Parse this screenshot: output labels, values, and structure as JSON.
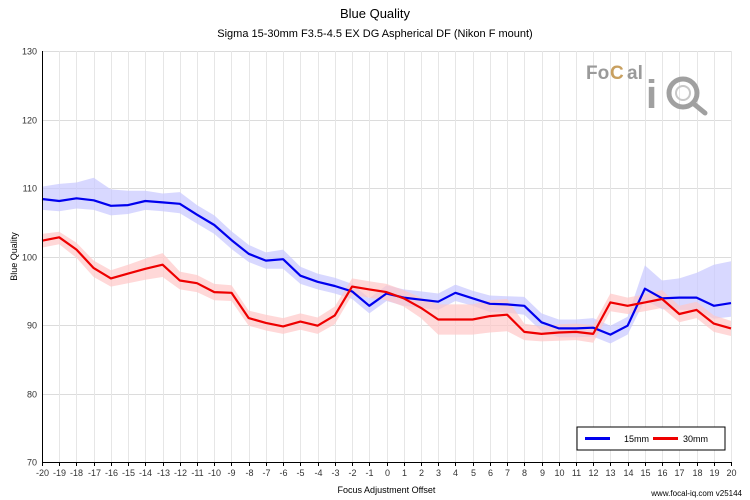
{
  "chart_data": {
    "type": "line",
    "title": "Blue Quality",
    "subtitle": "Sigma 15-30mm F3.5-4.5 EX DG Aspherical DF (Nikon F mount)",
    "xlabel": "Focus Adjustment Offset",
    "ylabel": "Blue Quality",
    "xlim": [
      -20,
      20
    ],
    "ylim": [
      70,
      130
    ],
    "x_ticks": [
      -20,
      -19,
      -18,
      -17,
      -16,
      -15,
      -14,
      -13,
      -12,
      -11,
      -10,
      -9,
      -8,
      -7,
      -6,
      -5,
      -4,
      -3,
      -2,
      -1,
      0,
      1,
      2,
      3,
      4,
      5,
      6,
      7,
      8,
      9,
      10,
      11,
      12,
      13,
      14,
      15,
      16,
      17,
      18,
      19,
      20
    ],
    "y_ticks": [
      70,
      80,
      90,
      100,
      110,
      120,
      130
    ],
    "grid": true,
    "legend_position": "bottom-right",
    "series": [
      {
        "name": "15mm",
        "color": "#0000ee",
        "band_color": "#c8c8ff",
        "x": [
          -20,
          -19,
          -18,
          -17,
          -16,
          -15,
          -14,
          -13,
          -12,
          -11,
          -10,
          -9,
          -8,
          -7,
          -6,
          -5,
          -4,
          -3,
          -2,
          -1,
          0,
          1,
          2,
          3,
          4,
          5,
          6,
          7,
          8,
          9,
          10,
          11,
          12,
          13,
          14,
          15,
          16,
          17,
          18,
          19,
          20
        ],
        "values": [
          108.4,
          108.1,
          108.5,
          108.2,
          107.4,
          107.5,
          108.1,
          107.9,
          107.7,
          106.1,
          104.6,
          102.4,
          100.4,
          99.4,
          99.6,
          97.2,
          96.3,
          95.7,
          94.9,
          92.8,
          94.6,
          94.0,
          93.7,
          93.4,
          94.7,
          93.9,
          93.1,
          93.0,
          92.8,
          90.4,
          89.5,
          89.5,
          89.6,
          88.6,
          89.9,
          95.3,
          93.9,
          94.0,
          94.0,
          92.8,
          93.2
        ],
        "lower": [
          106.8,
          106.6,
          107.0,
          106.8,
          106.0,
          106.2,
          106.8,
          106.6,
          106.3,
          104.8,
          103.3,
          101.1,
          99.2,
          98.2,
          98.2,
          96.0,
          95.2,
          94.6,
          93.8,
          91.7,
          93.5,
          92.8,
          92.5,
          92.2,
          93.5,
          92.8,
          91.9,
          91.8,
          91.5,
          89.1,
          88.2,
          88.2,
          88.3,
          87.3,
          88.6,
          93.6,
          92.3,
          92.2,
          92.2,
          90.9,
          91.2
        ],
        "upper": [
          110.2,
          110.6,
          110.8,
          111.5,
          109.8,
          109.6,
          109.6,
          109.2,
          109.4,
          107.5,
          106.0,
          103.7,
          101.7,
          100.6,
          101.0,
          98.5,
          97.5,
          96.9,
          96.0,
          93.9,
          95.8,
          95.2,
          94.9,
          94.6,
          95.9,
          95.0,
          94.3,
          94.2,
          94.1,
          91.7,
          90.8,
          90.8,
          91.0,
          89.9,
          91.2,
          98.7,
          96.5,
          96.8,
          97.6,
          98.8,
          99.3
        ]
      },
      {
        "name": "30mm",
        "color": "#ee0000",
        "band_color": "#ffc8c8",
        "x": [
          -20,
          -19,
          -18,
          -17,
          -16,
          -15,
          -14,
          -13,
          -12,
          -11,
          -10,
          -9,
          -8,
          -7,
          -6,
          -5,
          -4,
          -3,
          -2,
          -1,
          0,
          1,
          2,
          3,
          4,
          5,
          6,
          7,
          8,
          9,
          10,
          11,
          12,
          13,
          14,
          15,
          16,
          17,
          18,
          19,
          20
        ],
        "values": [
          102.3,
          102.8,
          101.0,
          98.3,
          96.8,
          97.5,
          98.2,
          98.8,
          96.5,
          96.1,
          94.8,
          94.7,
          91.0,
          90.3,
          89.8,
          90.5,
          89.9,
          91.4,
          95.6,
          95.2,
          94.8,
          93.9,
          92.5,
          90.8,
          90.8,
          90.8,
          91.3,
          91.5,
          89.0,
          88.7,
          88.9,
          89.0,
          88.7,
          93.3,
          92.8,
          93.3,
          93.8,
          91.6,
          92.2,
          90.2,
          89.5
        ],
        "lower": [
          101.3,
          101.8,
          99.8,
          97.0,
          95.6,
          96.1,
          96.6,
          97.0,
          95.2,
          94.8,
          93.6,
          93.5,
          89.9,
          89.2,
          88.7,
          89.3,
          88.7,
          90.1,
          94.4,
          94.0,
          93.6,
          92.7,
          91.0,
          88.6,
          88.6,
          88.6,
          88.9,
          89.1,
          87.8,
          87.6,
          87.7,
          87.8,
          87.4,
          92.0,
          91.6,
          92.0,
          92.5,
          90.4,
          91.0,
          89.0,
          88.4
        ],
        "upper": [
          103.3,
          103.6,
          102.0,
          99.4,
          98.0,
          98.8,
          99.7,
          100.5,
          97.8,
          97.3,
          96.0,
          95.8,
          92.1,
          91.5,
          91.0,
          91.7,
          91.1,
          92.7,
          96.8,
          96.4,
          96.0,
          95.1,
          94.0,
          93.0,
          93.0,
          93.0,
          93.6,
          93.8,
          90.2,
          89.8,
          90.1,
          90.2,
          90.0,
          94.6,
          94.0,
          94.5,
          95.1,
          92.8,
          93.4,
          91.4,
          90.6
        ]
      }
    ]
  },
  "watermark": {
    "fo": "Fo",
    "c": "C",
    "al": "al",
    "iq_i": "i",
    "iq_q": "Q",
    "colors": {
      "text": "#999999",
      "accent": "#c8a060"
    }
  },
  "footer": {
    "text": "www.focal-iq.com  v25144"
  }
}
